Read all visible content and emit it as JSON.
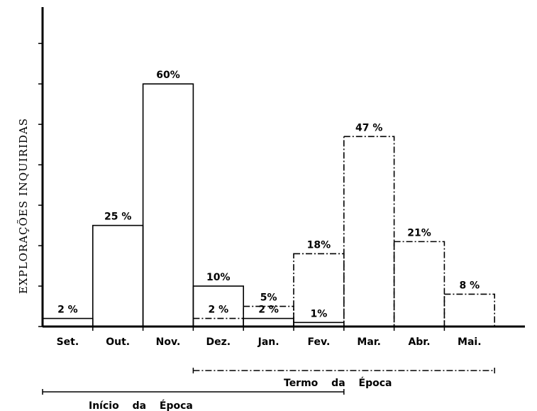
{
  "chart_data": {
    "type": "bar",
    "y_label": "EXPLORAÇÕES INQUIRIDAS",
    "categories": [
      "Set.",
      "Out.",
      "Nov.",
      "Dez.",
      "Jan.",
      "Fev.",
      "Mar.",
      "Abr.",
      "Mai."
    ],
    "series": [
      {
        "name": "Início da Época",
        "color": "#000000",
        "line_style": "solid",
        "values": [
          2,
          25,
          60,
          10,
          2,
          1,
          null,
          null,
          null
        ],
        "value_labels": [
          "2 %",
          "25 %",
          "60%",
          "10%",
          "2 %",
          "1%",
          null,
          null,
          null
        ]
      },
      {
        "name": "Termo da Época",
        "color": "#000000",
        "line_style": "dash-dot",
        "values": [
          null,
          null,
          null,
          2,
          5,
          18,
          47,
          21,
          8
        ],
        "value_labels": [
          null,
          null,
          null,
          "2 %",
          "5%",
          "18%",
          "47 %",
          "21%",
          "8 %"
        ]
      }
    ],
    "ylim": [
      0,
      79
    ],
    "yticks": [
      0,
      10,
      20,
      30,
      40,
      50,
      60,
      70
    ],
    "grid": false
  }
}
